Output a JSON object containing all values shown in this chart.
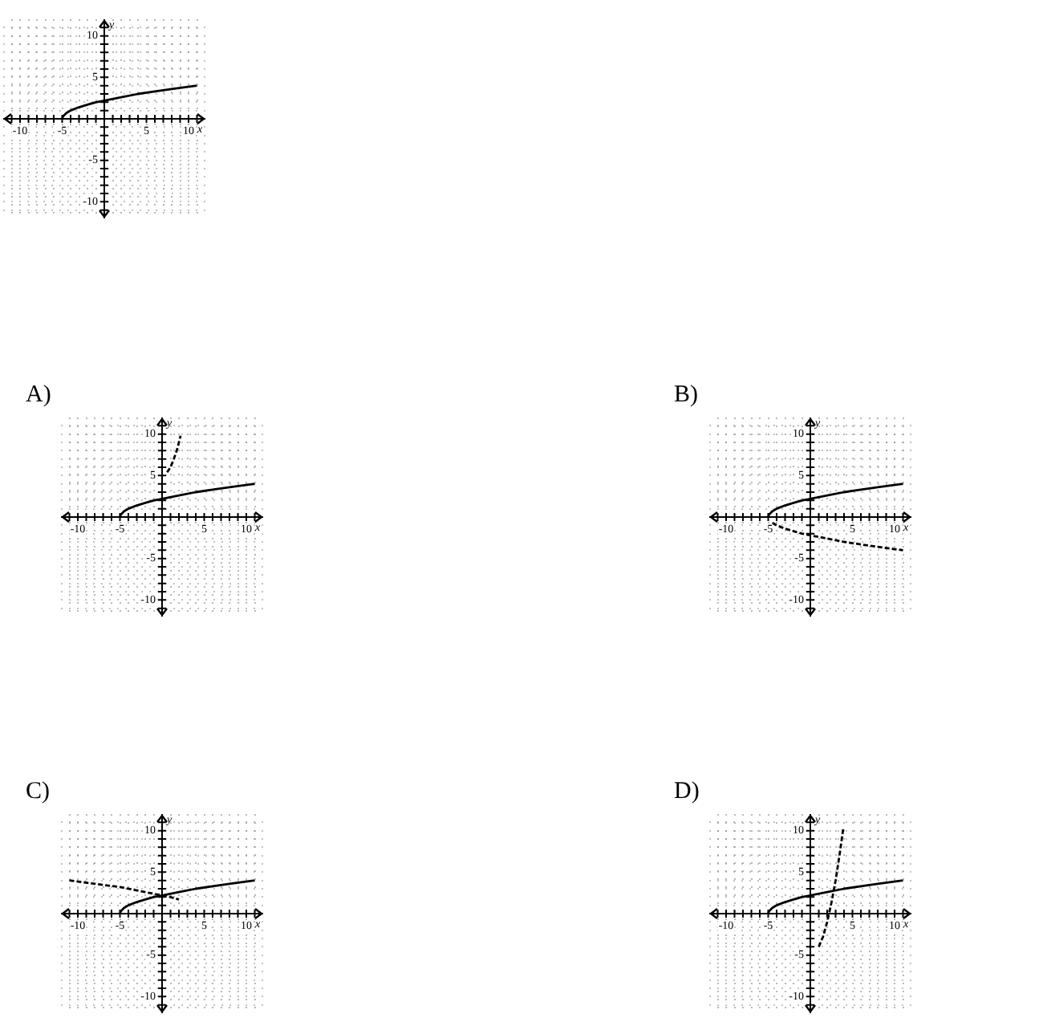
{
  "chart_data": [
    {
      "type": "line",
      "xlabel": "x",
      "ylabel": "y",
      "xlim": [
        -12,
        12
      ],
      "ylim": [
        -12,
        12
      ],
      "xticks": [
        {
          "value": -11,
          "label": null
        },
        {
          "value": -10,
          "label": "-10"
        },
        {
          "value": -9,
          "label": null
        },
        {
          "value": -8,
          "label": null
        },
        {
          "value": -7,
          "label": null
        },
        {
          "value": -6,
          "label": null
        },
        {
          "value": -5,
          "label": "-5"
        },
        {
          "value": -4,
          "label": null
        },
        {
          "value": -3,
          "label": null
        },
        {
          "value": -2,
          "label": null
        },
        {
          "value": -1,
          "label": null
        },
        {
          "value": 1,
          "label": null
        },
        {
          "value": 2,
          "label": null
        },
        {
          "value": 3,
          "label": null
        },
        {
          "value": 4,
          "label": null
        },
        {
          "value": 5,
          "label": "5"
        },
        {
          "value": 6,
          "label": null
        },
        {
          "value": 7,
          "label": null
        },
        {
          "value": 8,
          "label": null
        },
        {
          "value": 9,
          "label": null
        },
        {
          "value": 10,
          "label": "10"
        },
        {
          "value": 11,
          "label": null
        }
      ],
      "yticks": [
        {
          "value": -11,
          "label": null
        },
        {
          "value": -10,
          "label": "-10"
        },
        {
          "value": -9,
          "label": null
        },
        {
          "value": -8,
          "label": null
        },
        {
          "value": -7,
          "label": null
        },
        {
          "value": -6,
          "label": null
        },
        {
          "value": -5,
          "label": "-5"
        },
        {
          "value": -4,
          "label": null
        },
        {
          "value": -3,
          "label": null
        },
        {
          "value": -2,
          "label": null
        },
        {
          "value": -1,
          "label": null
        },
        {
          "value": 1,
          "label": null
        },
        {
          "value": 2,
          "label": null
        },
        {
          "value": 3,
          "label": null
        },
        {
          "value": 4,
          "label": null
        },
        {
          "value": 5,
          "label": "5"
        },
        {
          "value": 6,
          "label": null
        },
        {
          "value": 7,
          "label": null
        },
        {
          "value": 8,
          "label": null
        },
        {
          "value": 9,
          "label": null
        },
        {
          "value": 10,
          "label": "10"
        },
        {
          "value": 11,
          "label": null
        }
      ],
      "grid": true,
      "legend": false,
      "marker": "none",
      "series": [
        {
          "color": "#000000",
          "line_style": "solid",
          "x": [
            -5,
            -4.9,
            -4.5,
            -4,
            -3,
            -2,
            -1,
            0,
            2,
            4,
            6,
            8,
            11
          ],
          "values": [
            0,
            0.3,
            0.7,
            1,
            1.4,
            1.7,
            2,
            2.2,
            2.6,
            3,
            3.3,
            3.6,
            4
          ]
        }
      ]
    },
    {
      "type": "line",
      "title": "A)",
      "xlabel": "x",
      "ylabel": "y",
      "xlim": [
        -12,
        12
      ],
      "ylim": [
        -12,
        12
      ],
      "xticks": [
        {
          "value": -11,
          "label": null
        },
        {
          "value": -10,
          "label": "-10"
        },
        {
          "value": -9,
          "label": null
        },
        {
          "value": -8,
          "label": null
        },
        {
          "value": -7,
          "label": null
        },
        {
          "value": -6,
          "label": null
        },
        {
          "value": -5,
          "label": "-5"
        },
        {
          "value": -4,
          "label": null
        },
        {
          "value": -3,
          "label": null
        },
        {
          "value": -2,
          "label": null
        },
        {
          "value": -1,
          "label": null
        },
        {
          "value": 1,
          "label": null
        },
        {
          "value": 2,
          "label": null
        },
        {
          "value": 3,
          "label": null
        },
        {
          "value": 4,
          "label": null
        },
        {
          "value": 5,
          "label": "5"
        },
        {
          "value": 6,
          "label": null
        },
        {
          "value": 7,
          "label": null
        },
        {
          "value": 8,
          "label": null
        },
        {
          "value": 9,
          "label": null
        },
        {
          "value": 10,
          "label": "10"
        },
        {
          "value": 11,
          "label": null
        }
      ],
      "yticks": [
        {
          "value": -11,
          "label": null
        },
        {
          "value": -10,
          "label": "-10"
        },
        {
          "value": -9,
          "label": null
        },
        {
          "value": -8,
          "label": null
        },
        {
          "value": -7,
          "label": null
        },
        {
          "value": -6,
          "label": null
        },
        {
          "value": -5,
          "label": "-5"
        },
        {
          "value": -4,
          "label": null
        },
        {
          "value": -3,
          "label": null
        },
        {
          "value": -2,
          "label": null
        },
        {
          "value": -1,
          "label": null
        },
        {
          "value": 1,
          "label": null
        },
        {
          "value": 2,
          "label": null
        },
        {
          "value": 3,
          "label": null
        },
        {
          "value": 4,
          "label": null
        },
        {
          "value": 5,
          "label": "5"
        },
        {
          "value": 6,
          "label": null
        },
        {
          "value": 7,
          "label": null
        },
        {
          "value": 8,
          "label": null
        },
        {
          "value": 9,
          "label": null
        },
        {
          "value": 10,
          "label": "10"
        },
        {
          "value": 11,
          "label": null
        }
      ],
      "grid": true,
      "legend": false,
      "marker": "none",
      "series": [
        {
          "color": "#000000",
          "line_style": "solid",
          "x": [
            -5,
            -4.9,
            -4.5,
            -4,
            -3,
            -2,
            -1,
            0,
            2,
            4,
            6,
            8,
            11
          ],
          "values": [
            0,
            0.3,
            0.7,
            1,
            1.4,
            1.7,
            2,
            2.2,
            2.6,
            3,
            3.3,
            3.6,
            4
          ]
        },
        {
          "color": "#000000",
          "line_style": "dashed",
          "x": [
            0.6,
            1,
            1.4,
            1.8,
            2.2
          ],
          "values": [
            5.4,
            6,
            7,
            8.2,
            9.8
          ]
        }
      ]
    },
    {
      "type": "line",
      "title": "B)",
      "xlabel": "x",
      "ylabel": "y",
      "xlim": [
        -12,
        12
      ],
      "ylim": [
        -12,
        12
      ],
      "xticks": [
        {
          "value": -11,
          "label": null
        },
        {
          "value": -10,
          "label": "-10"
        },
        {
          "value": -9,
          "label": null
        },
        {
          "value": -8,
          "label": null
        },
        {
          "value": -7,
          "label": null
        },
        {
          "value": -6,
          "label": null
        },
        {
          "value": -5,
          "label": "-5"
        },
        {
          "value": -4,
          "label": null
        },
        {
          "value": -3,
          "label": null
        },
        {
          "value": -2,
          "label": null
        },
        {
          "value": -1,
          "label": null
        },
        {
          "value": 1,
          "label": null
        },
        {
          "value": 2,
          "label": null
        },
        {
          "value": 3,
          "label": null
        },
        {
          "value": 4,
          "label": null
        },
        {
          "value": 5,
          "label": "5"
        },
        {
          "value": 6,
          "label": null
        },
        {
          "value": 7,
          "label": null
        },
        {
          "value": 8,
          "label": null
        },
        {
          "value": 9,
          "label": null
        },
        {
          "value": 10,
          "label": "10"
        },
        {
          "value": 11,
          "label": null
        }
      ],
      "yticks": [
        {
          "value": -11,
          "label": null
        },
        {
          "value": -10,
          "label": "-10"
        },
        {
          "value": -9,
          "label": null
        },
        {
          "value": -8,
          "label": null
        },
        {
          "value": -7,
          "label": null
        },
        {
          "value": -6,
          "label": null
        },
        {
          "value": -5,
          "label": "-5"
        },
        {
          "value": -4,
          "label": null
        },
        {
          "value": -3,
          "label": null
        },
        {
          "value": -2,
          "label": null
        },
        {
          "value": -1,
          "label": null
        },
        {
          "value": 1,
          "label": null
        },
        {
          "value": 2,
          "label": null
        },
        {
          "value": 3,
          "label": null
        },
        {
          "value": 4,
          "label": null
        },
        {
          "value": 5,
          "label": "5"
        },
        {
          "value": 6,
          "label": null
        },
        {
          "value": 7,
          "label": null
        },
        {
          "value": 8,
          "label": null
        },
        {
          "value": 9,
          "label": null
        },
        {
          "value": 10,
          "label": "10"
        },
        {
          "value": 11,
          "label": null
        }
      ],
      "grid": true,
      "legend": false,
      "marker": "none",
      "series": [
        {
          "color": "#000000",
          "line_style": "solid",
          "x": [
            -5,
            -4.9,
            -4.5,
            -4,
            -3,
            -2,
            -1,
            0,
            2,
            4,
            6,
            8,
            11
          ],
          "values": [
            0,
            0.3,
            0.7,
            1,
            1.4,
            1.7,
            2,
            2.2,
            2.6,
            3,
            3.3,
            3.6,
            4
          ]
        },
        {
          "color": "#000000",
          "line_style": "dashed",
          "x": [
            -4.5,
            -4,
            -3,
            -2,
            -1,
            0,
            2,
            4,
            6,
            8,
            11
          ],
          "values": [
            -0.7,
            -1,
            -1.4,
            -1.7,
            -2,
            -2.2,
            -2.6,
            -3,
            -3.3,
            -3.6,
            -4
          ]
        }
      ]
    },
    {
      "type": "line",
      "title": "C)",
      "xlabel": "x",
      "ylabel": "y",
      "xlim": [
        -12,
        12
      ],
      "ylim": [
        -12,
        12
      ],
      "xticks": [
        {
          "value": -11,
          "label": null
        },
        {
          "value": -10,
          "label": "-10"
        },
        {
          "value": -9,
          "label": null
        },
        {
          "value": -8,
          "label": null
        },
        {
          "value": -7,
          "label": null
        },
        {
          "value": -6,
          "label": null
        },
        {
          "value": -5,
          "label": "-5"
        },
        {
          "value": -4,
          "label": null
        },
        {
          "value": -3,
          "label": null
        },
        {
          "value": -2,
          "label": null
        },
        {
          "value": -1,
          "label": null
        },
        {
          "value": 1,
          "label": null
        },
        {
          "value": 2,
          "label": null
        },
        {
          "value": 3,
          "label": null
        },
        {
          "value": 4,
          "label": null
        },
        {
          "value": 5,
          "label": "5"
        },
        {
          "value": 6,
          "label": null
        },
        {
          "value": 7,
          "label": null
        },
        {
          "value": 8,
          "label": null
        },
        {
          "value": 9,
          "label": null
        },
        {
          "value": 10,
          "label": "10"
        },
        {
          "value": 11,
          "label": null
        }
      ],
      "yticks": [
        {
          "value": -11,
          "label": null
        },
        {
          "value": -10,
          "label": "-10"
        },
        {
          "value": -9,
          "label": null
        },
        {
          "value": -8,
          "label": null
        },
        {
          "value": -7,
          "label": null
        },
        {
          "value": -6,
          "label": null
        },
        {
          "value": -5,
          "label": "-5"
        },
        {
          "value": -4,
          "label": null
        },
        {
          "value": -3,
          "label": null
        },
        {
          "value": -2,
          "label": null
        },
        {
          "value": -1,
          "label": null
        },
        {
          "value": 1,
          "label": null
        },
        {
          "value": 2,
          "label": null
        },
        {
          "value": 3,
          "label": null
        },
        {
          "value": 4,
          "label": null
        },
        {
          "value": 5,
          "label": "5"
        },
        {
          "value": 6,
          "label": null
        },
        {
          "value": 7,
          "label": null
        },
        {
          "value": 8,
          "label": null
        },
        {
          "value": 9,
          "label": null
        },
        {
          "value": 10,
          "label": "10"
        },
        {
          "value": 11,
          "label": null
        }
      ],
      "grid": true,
      "legend": false,
      "marker": "none",
      "series": [
        {
          "color": "#000000",
          "line_style": "solid",
          "x": [
            -5,
            -4.9,
            -4.5,
            -4,
            -3,
            -2,
            -1,
            0,
            2,
            4,
            6,
            8,
            11
          ],
          "values": [
            0,
            0.3,
            0.7,
            1,
            1.4,
            1.7,
            2,
            2.2,
            2.6,
            3,
            3.3,
            3.6,
            4
          ]
        },
        {
          "color": "#000000",
          "line_style": "dashed",
          "x": [
            -11,
            -8,
            -5,
            -2,
            0,
            1,
            2
          ],
          "values": [
            4,
            3.6,
            3.2,
            2.6,
            2.2,
            2,
            1.7
          ]
        }
      ]
    },
    {
      "type": "line",
      "title": "D)",
      "xlabel": "x",
      "ylabel": "y",
      "xlim": [
        -12,
        12
      ],
      "ylim": [
        -12,
        12
      ],
      "xticks": [
        {
          "value": -11,
          "label": null
        },
        {
          "value": -10,
          "label": "-10"
        },
        {
          "value": -9,
          "label": null
        },
        {
          "value": -8,
          "label": null
        },
        {
          "value": -7,
          "label": null
        },
        {
          "value": -6,
          "label": null
        },
        {
          "value": -5,
          "label": "-5"
        },
        {
          "value": -4,
          "label": null
        },
        {
          "value": -3,
          "label": null
        },
        {
          "value": -2,
          "label": null
        },
        {
          "value": -1,
          "label": null
        },
        {
          "value": 1,
          "label": null
        },
        {
          "value": 2,
          "label": null
        },
        {
          "value": 3,
          "label": null
        },
        {
          "value": 4,
          "label": null
        },
        {
          "value": 5,
          "label": "5"
        },
        {
          "value": 6,
          "label": null
        },
        {
          "value": 7,
          "label": null
        },
        {
          "value": 8,
          "label": null
        },
        {
          "value": 9,
          "label": null
        },
        {
          "value": 10,
          "label": "10"
        },
        {
          "value": 11,
          "label": null
        }
      ],
      "yticks": [
        {
          "value": -11,
          "label": null
        },
        {
          "value": -10,
          "label": "-10"
        },
        {
          "value": -9,
          "label": null
        },
        {
          "value": -8,
          "label": null
        },
        {
          "value": -7,
          "label": null
        },
        {
          "value": -6,
          "label": null
        },
        {
          "value": -5,
          "label": "-5"
        },
        {
          "value": -4,
          "label": null
        },
        {
          "value": -3,
          "label": null
        },
        {
          "value": -2,
          "label": null
        },
        {
          "value": -1,
          "label": null
        },
        {
          "value": 1,
          "label": null
        },
        {
          "value": 2,
          "label": null
        },
        {
          "value": 3,
          "label": null
        },
        {
          "value": 4,
          "label": null
        },
        {
          "value": 5,
          "label": "5"
        },
        {
          "value": 6,
          "label": null
        },
        {
          "value": 7,
          "label": null
        },
        {
          "value": 8,
          "label": null
        },
        {
          "value": 9,
          "label": null
        },
        {
          "value": 10,
          "label": "10"
        },
        {
          "value": 11,
          "label": null
        }
      ],
      "grid": true,
      "legend": false,
      "marker": "none",
      "series": [
        {
          "color": "#000000",
          "line_style": "solid",
          "x": [
            -5,
            -4.9,
            -4.5,
            -4,
            -3,
            -2,
            -1,
            0,
            2,
            4,
            6,
            8,
            11
          ],
          "values": [
            0,
            0.3,
            0.7,
            1,
            1.4,
            1.7,
            2,
            2.2,
            2.6,
            3,
            3.3,
            3.6,
            4
          ]
        },
        {
          "color": "#000000",
          "line_style": "dashed",
          "x": [
            1,
            1.5,
            2,
            2.5,
            3,
            3.5,
            3.9
          ],
          "values": [
            -4,
            -2.8,
            -1,
            1.3,
            4,
            7.3,
            10.2
          ]
        }
      ]
    }
  ]
}
